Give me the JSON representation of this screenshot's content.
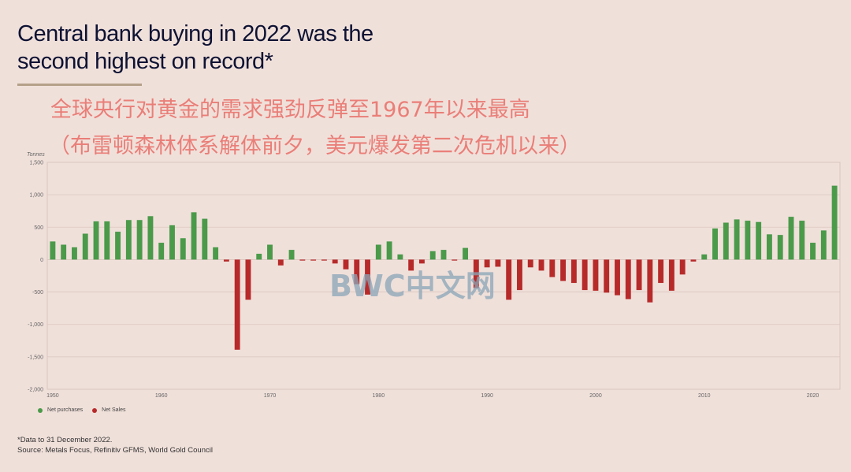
{
  "header": {
    "title_line1": "Central bank buying in 2022 was the",
    "title_line2": "second highest on record*"
  },
  "annotation": {
    "line1": "全球央行对黄金的需求强劲反弹至1967年以来最高",
    "line2": "（布雷顿森林体系解体前夕，美元爆发第二次危机以来）"
  },
  "watermark": "BWC中文网",
  "footnote": {
    "line1": "*Data to 31 December 2022.",
    "line2": "Source: Metals Focus, Refinitiv GFMS, World Gold Council"
  },
  "colors": {
    "positive": "#4a9a4a",
    "negative": "#b72a2a",
    "background": "#f0e0da"
  },
  "chart_data": {
    "type": "bar",
    "ylabel": "Tonnes",
    "ylim": [
      -2000,
      1500
    ],
    "yticks": [
      1500,
      1000,
      500,
      0,
      -500,
      -1000,
      -1500,
      -2000
    ],
    "ytick_labels": [
      "1,500",
      "1,000",
      "500",
      "0",
      "-500",
      "-1,000",
      "-1,500",
      "-2,000"
    ],
    "xticks": [
      1950,
      1960,
      1970,
      1980,
      1990,
      2000,
      2010,
      2020
    ],
    "grid": "horizontal",
    "legend_position": "bottom-left",
    "legend": [
      "Net purchases",
      "Net Sales"
    ],
    "series": [
      {
        "name": "Net purchases",
        "color": "#4a9a4a"
      },
      {
        "name": "Net Sales",
        "color": "#b72a2a"
      }
    ],
    "x": [
      1950,
      1951,
      1952,
      1953,
      1954,
      1955,
      1956,
      1957,
      1958,
      1959,
      1960,
      1961,
      1962,
      1963,
      1964,
      1965,
      1966,
      1967,
      1968,
      1969,
      1970,
      1971,
      1972,
      1973,
      1974,
      1975,
      1976,
      1977,
      1978,
      1979,
      1980,
      1981,
      1982,
      1983,
      1984,
      1985,
      1986,
      1987,
      1988,
      1989,
      1990,
      1991,
      1992,
      1993,
      1994,
      1995,
      1996,
      1997,
      1998,
      1999,
      2000,
      2001,
      2002,
      2003,
      2004,
      2005,
      2006,
      2007,
      2008,
      2009,
      2010,
      2011,
      2012,
      2013,
      2014,
      2015,
      2016,
      2017,
      2018,
      2019,
      2020,
      2021,
      2022
    ],
    "values": [
      280,
      230,
      190,
      400,
      590,
      590,
      430,
      610,
      610,
      670,
      260,
      530,
      330,
      730,
      630,
      190,
      -30,
      -1390,
      -620,
      90,
      230,
      -90,
      150,
      -15,
      -15,
      -15,
      -60,
      -150,
      -380,
      -540,
      230,
      280,
      80,
      -170,
      -60,
      130,
      150,
      -15,
      180,
      -440,
      -120,
      -110,
      -620,
      -470,
      -120,
      -170,
      -270,
      -330,
      -360,
      -470,
      -480,
      -510,
      -550,
      -610,
      -470,
      -660,
      -360,
      -480,
      -230,
      -30,
      80,
      480,
      570,
      620,
      600,
      580,
      390,
      380,
      660,
      600,
      260,
      450,
      1140
    ]
  }
}
